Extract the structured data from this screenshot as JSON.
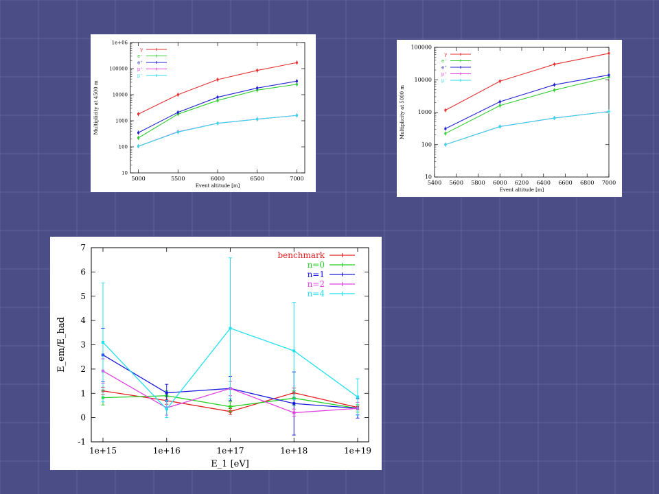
{
  "slide": {
    "background_color": "#4a4d86",
    "grid_color": "#7b7eb4"
  },
  "chart_data": [
    {
      "type": "line",
      "ylabel": "Multiplicity at 4500 m",
      "xlabel": "Event altitude [m]",
      "yscale": "log",
      "ylim": [
        10,
        1000000
      ],
      "xlim": [
        4900,
        7100
      ],
      "x": [
        5000,
        5500,
        6000,
        6500,
        7000
      ],
      "xticks": [
        "5000",
        "5500",
        "6000",
        "6500",
        "7000"
      ],
      "yticks": [
        "10",
        "100",
        "1000",
        "10000",
        "100000",
        "1e+06"
      ],
      "legend_position": "top-left",
      "series": [
        {
          "name": "γ",
          "color": "#e53030",
          "values": [
            1800,
            10000,
            38000,
            85000,
            170000
          ]
        },
        {
          "name": "e⁻",
          "color": "#30cc30",
          "values": [
            220,
            1800,
            6000,
            15000,
            25000
          ]
        },
        {
          "name": "e⁺",
          "color": "#2020d0",
          "values": [
            350,
            2100,
            8000,
            18000,
            33000
          ]
        },
        {
          "name": "μ⁺",
          "color": "#e040e0",
          "values": [
            105,
            380,
            800,
            1150,
            1600
          ]
        },
        {
          "name": "μ⁻",
          "color": "#30d8e8",
          "values": [
            105,
            370,
            800,
            1150,
            1600
          ]
        }
      ]
    },
    {
      "type": "line",
      "ylabel": "Multiplicity at 5000 m",
      "xlabel": "Event altitude [m]",
      "yscale": "log",
      "ylim": [
        10,
        100000
      ],
      "xlim": [
        5400,
        7000
      ],
      "x": [
        5500,
        6000,
        6500,
        7000
      ],
      "xticks": [
        "5400",
        "5600",
        "5800",
        "6000",
        "6200",
        "6400",
        "6600",
        "6800",
        "7000"
      ],
      "yticks": [
        "10",
        "100",
        "1000",
        "10000",
        "100000"
      ],
      "legend_position": "top-left",
      "series": [
        {
          "name": "γ",
          "color": "#e53030",
          "values": [
            1150,
            9000,
            30000,
            65000
          ]
        },
        {
          "name": "e⁻",
          "color": "#30cc30",
          "values": [
            220,
            1600,
            4800,
            12000
          ]
        },
        {
          "name": "e⁺",
          "color": "#2020d0",
          "values": [
            310,
            2100,
            7000,
            14000
          ]
        },
        {
          "name": "μ⁺",
          "color": "#e040e0",
          "values": [
            100,
            360,
            660,
            1050
          ]
        },
        {
          "name": "μ⁻",
          "color": "#30d8e8",
          "values": [
            100,
            360,
            660,
            1050
          ]
        }
      ]
    },
    {
      "type": "line",
      "ylabel": "E_em/E_had",
      "xlabel": "E_1 [eV]",
      "ylim": [
        -1,
        7
      ],
      "x": [
        "1e+15",
        "1e+16",
        "1e+17",
        "1e+18",
        "1e+19"
      ],
      "xticks": [
        "1e+15",
        "1e+16",
        "1e+17",
        "1e+18",
        "1e+19"
      ],
      "yticks": [
        "-1",
        "0",
        "1",
        "2",
        "3",
        "4",
        "5",
        "6",
        "7"
      ],
      "legend_position": "top-right",
      "series": [
        {
          "name": "benchmark",
          "color": "#e02020",
          "values": [
            1.1,
            0.7,
            0.25,
            1.02,
            0.42
          ],
          "errors": [
            0.15,
            0.15,
            0.12,
            0.2,
            0.1
          ]
        },
        {
          "name": "n=0",
          "color": "#22d022",
          "values": [
            0.82,
            0.9,
            0.45,
            0.8,
            0.38
          ],
          "errors": [
            0.3,
            0.2,
            0.2,
            0.3,
            0.15
          ]
        },
        {
          "name": "n=1",
          "color": "#1a1adc",
          "values": [
            2.58,
            1.02,
            1.2,
            0.58,
            0.38
          ],
          "errors": [
            1.1,
            0.35,
            0.5,
            1.3,
            0.4
          ]
        },
        {
          "name": "n=2",
          "color": "#e040e0",
          "values": [
            1.92,
            0.4,
            1.2,
            0.2,
            0.38
          ],
          "errors": [
            0.5,
            0.3,
            0.3,
            0.15,
            0.25
          ]
        },
        {
          "name": "n=4",
          "color": "#22e0ee",
          "values": [
            3.1,
            0.35,
            3.68,
            2.75,
            0.85
          ],
          "errors": [
            2.45,
            0.35,
            2.9,
            2.0,
            0.75
          ]
        }
      ]
    }
  ]
}
